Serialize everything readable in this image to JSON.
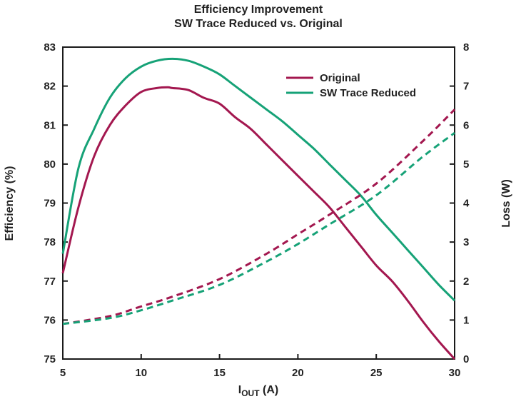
{
  "chart_data": {
    "type": "line",
    "title": "Efficiency Improvement",
    "subtitle": "SW Trace Reduced vs. Original",
    "xlabel_main": "I",
    "xlabel_sub": "OUT",
    "xlabel_unit": " (A)",
    "ylabel_left": "Efficiency (%)",
    "ylabel_right": "Loss (W)",
    "xlim": [
      5,
      30
    ],
    "ylim_left": [
      75,
      83
    ],
    "ylim_right": [
      0,
      8
    ],
    "x_ticks": [
      "5",
      "10",
      "15",
      "20",
      "25",
      "30"
    ],
    "y_left_ticks": [
      "75",
      "76",
      "77",
      "78",
      "79",
      "80",
      "81",
      "82",
      "83"
    ],
    "y_right_ticks": [
      "0",
      "1",
      "2",
      "3",
      "4",
      "5",
      "6",
      "7",
      "8"
    ],
    "grid": false,
    "legend_position": "top-right",
    "legend": [
      "Original",
      "SW Trace Reduced"
    ],
    "colors": {
      "original": "#a3174f",
      "reduced": "#16a277"
    },
    "series": [
      {
        "name": "Original",
        "axis": "left",
        "style": "solid",
        "color": "#a3174f",
        "x": [
          5,
          6,
          7,
          8,
          9,
          10,
          11,
          11.7,
          12,
          13,
          14,
          15,
          16,
          17,
          18,
          19,
          20,
          21,
          22,
          23,
          24,
          25,
          26,
          27,
          28,
          29,
          30
        ],
        "y": [
          77.2,
          78.9,
          80.2,
          81.0,
          81.5,
          81.85,
          81.95,
          81.97,
          81.95,
          81.9,
          81.7,
          81.55,
          81.2,
          80.9,
          80.5,
          80.1,
          79.7,
          79.3,
          78.9,
          78.4,
          77.9,
          77.4,
          77.0,
          76.5,
          75.95,
          75.45,
          75.0
        ]
      },
      {
        "name": "SW Trace Reduced",
        "axis": "left",
        "style": "solid",
        "color": "#16a277",
        "x": [
          5,
          6,
          7,
          8,
          9,
          10,
          11,
          12,
          13,
          14,
          15,
          16,
          17,
          18,
          19,
          20,
          21,
          22,
          23,
          24,
          25,
          26,
          27,
          28,
          29,
          30
        ],
        "y": [
          77.7,
          79.9,
          80.9,
          81.7,
          82.2,
          82.5,
          82.65,
          82.7,
          82.65,
          82.5,
          82.3,
          82.0,
          81.7,
          81.4,
          81.1,
          80.75,
          80.4,
          80.0,
          79.6,
          79.2,
          78.7,
          78.25,
          77.8,
          77.35,
          76.9,
          76.5
        ]
      },
      {
        "name": "Original",
        "axis": "right",
        "style": "dashed",
        "color": "#a3174f",
        "x": [
          5,
          8,
          10,
          12,
          15,
          18,
          20,
          22,
          25,
          28,
          30
        ],
        "y": [
          0.9,
          1.1,
          1.35,
          1.6,
          2.05,
          2.7,
          3.2,
          3.7,
          4.5,
          5.6,
          6.4
        ]
      },
      {
        "name": "SW Trace Reduced",
        "axis": "right",
        "style": "dashed",
        "color": "#16a277",
        "x": [
          5,
          8,
          10,
          12,
          15,
          18,
          20,
          22,
          25,
          28,
          30
        ],
        "y": [
          0.9,
          1.05,
          1.25,
          1.5,
          1.9,
          2.5,
          2.95,
          3.45,
          4.2,
          5.2,
          5.8
        ]
      }
    ]
  }
}
